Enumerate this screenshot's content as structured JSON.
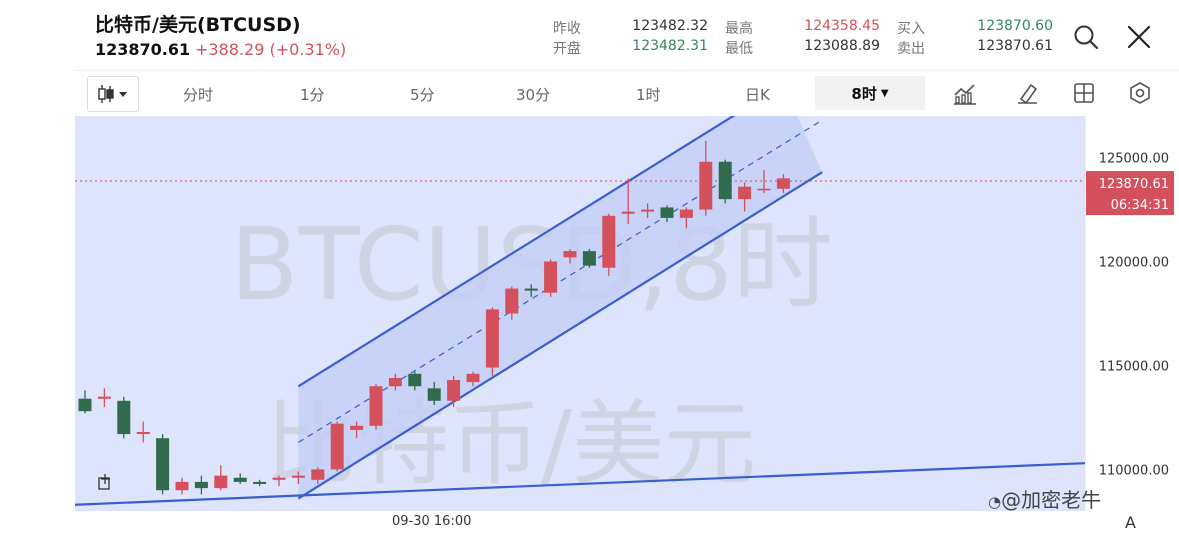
{
  "header": {
    "title": "比特币/美元(BTCUSD)",
    "price": "123870.61",
    "change": "+388.29 (+0.31%)",
    "quotes": [
      {
        "label": "昨收",
        "value": "123482.32",
        "color": "#333333"
      },
      {
        "label": "开盘",
        "value": "123482.31",
        "color": "#2f8a57"
      },
      {
        "label": "最高",
        "value": "124358.45",
        "color": "#d4505c"
      },
      {
        "label": "最低",
        "value": "123088.89",
        "color": "#333333"
      },
      {
        "label": "买入",
        "value": "123870.60",
        "color": "#2f8a57"
      },
      {
        "label": "卖出",
        "value": "123870.61",
        "color": "#333333"
      }
    ]
  },
  "toolbar": {
    "timeframes": [
      "分时",
      "1分",
      "5分",
      "30分",
      "1时",
      "日K"
    ],
    "active_timeframe": "8时",
    "icons": [
      "candlestick-icon",
      "indicator-icon",
      "draw-tool-icon",
      "layout-grid-icon",
      "settings-icon"
    ]
  },
  "chart": {
    "price_labels": [
      "125000.00",
      "120000.00",
      "115000.00",
      "110000.00"
    ],
    "current_price": "123870.61",
    "countdown": "06:34:31",
    "x_label": "09-30 16:00",
    "watermark_symbol": "BTCUSD,8时",
    "watermark_name": "比特币/美元",
    "corner_label": "A"
  },
  "chart_data": {
    "type": "candlestick",
    "ylim": [
      108000,
      127000
    ],
    "current": 123870.61,
    "candles": [
      {
        "o": 113400,
        "h": 113800,
        "l": 112700,
        "c": 112800
      },
      {
        "o": 113400,
        "h": 113900,
        "l": 113000,
        "c": 113500
      },
      {
        "o": 113300,
        "h": 113500,
        "l": 111500,
        "c": 111700
      },
      {
        "o": 111700,
        "h": 112300,
        "l": 111300,
        "c": 111800
      },
      {
        "o": 111500,
        "h": 111700,
        "l": 108800,
        "c": 109000
      },
      {
        "o": 109000,
        "h": 109600,
        "l": 108800,
        "c": 109400
      },
      {
        "o": 109400,
        "h": 109700,
        "l": 108800,
        "c": 109100
      },
      {
        "o": 109100,
        "h": 110200,
        "l": 109000,
        "c": 109700
      },
      {
        "o": 109600,
        "h": 109800,
        "l": 109300,
        "c": 109400
      },
      {
        "o": 109400,
        "h": 109500,
        "l": 109200,
        "c": 109300
      },
      {
        "o": 109500,
        "h": 109700,
        "l": 109200,
        "c": 109600
      },
      {
        "o": 109600,
        "h": 109900,
        "l": 109300,
        "c": 109700
      },
      {
        "o": 109500,
        "h": 110100,
        "l": 109300,
        "c": 110000
      },
      {
        "o": 110000,
        "h": 112300,
        "l": 109900,
        "c": 112200
      },
      {
        "o": 111900,
        "h": 112300,
        "l": 111500,
        "c": 112100
      },
      {
        "o": 112100,
        "h": 114100,
        "l": 111900,
        "c": 114000
      },
      {
        "o": 114000,
        "h": 114600,
        "l": 113800,
        "c": 114400
      },
      {
        "o": 114600,
        "h": 114700,
        "l": 113800,
        "c": 114000
      },
      {
        "o": 113900,
        "h": 114200,
        "l": 113100,
        "c": 113300
      },
      {
        "o": 113300,
        "h": 114500,
        "l": 113000,
        "c": 114300
      },
      {
        "o": 114200,
        "h": 114700,
        "l": 114000,
        "c": 114600
      },
      {
        "o": 114900,
        "h": 117800,
        "l": 114500,
        "c": 117700
      },
      {
        "o": 117500,
        "h": 118800,
        "l": 117200,
        "c": 118700
      },
      {
        "o": 118700,
        "h": 118900,
        "l": 118300,
        "c": 118600
      },
      {
        "o": 118500,
        "h": 120100,
        "l": 118300,
        "c": 120000
      },
      {
        "o": 120200,
        "h": 120600,
        "l": 119900,
        "c": 120500
      },
      {
        "o": 120500,
        "h": 120600,
        "l": 119700,
        "c": 119800
      },
      {
        "o": 119700,
        "h": 122300,
        "l": 119300,
        "c": 122200
      },
      {
        "o": 122300,
        "h": 124000,
        "l": 121800,
        "c": 122400
      },
      {
        "o": 122400,
        "h": 122800,
        "l": 122100,
        "c": 122500
      },
      {
        "o": 122600,
        "h": 122700,
        "l": 121900,
        "c": 122100
      },
      {
        "o": 122100,
        "h": 122600,
        "l": 121600,
        "c": 122500
      },
      {
        "o": 122500,
        "h": 125800,
        "l": 122200,
        "c": 124800
      },
      {
        "o": 124800,
        "h": 124900,
        "l": 122800,
        "c": 123000
      },
      {
        "o": 123000,
        "h": 123800,
        "l": 122400,
        "c": 123600
      },
      {
        "o": 123500,
        "h": 124400,
        "l": 123300,
        "c": 123500
      },
      {
        "o": 123500,
        "h": 124200,
        "l": 123300,
        "c": 124000
      }
    ],
    "channel_upper": [
      [
        11,
        114000
      ],
      [
        36,
        128500
      ]
    ],
    "channel_lower": [
      [
        11,
        108600
      ],
      [
        38,
        124300
      ]
    ],
    "channel_mid": [
      [
        11,
        111300
      ],
      [
        38,
        126800
      ]
    ],
    "support_line": [
      [
        -1,
        108300
      ],
      [
        44,
        110300
      ]
    ],
    "colors": {
      "up": "#d4505c",
      "down": "#2f6b4c",
      "line": "#3a5fcd"
    }
  }
}
